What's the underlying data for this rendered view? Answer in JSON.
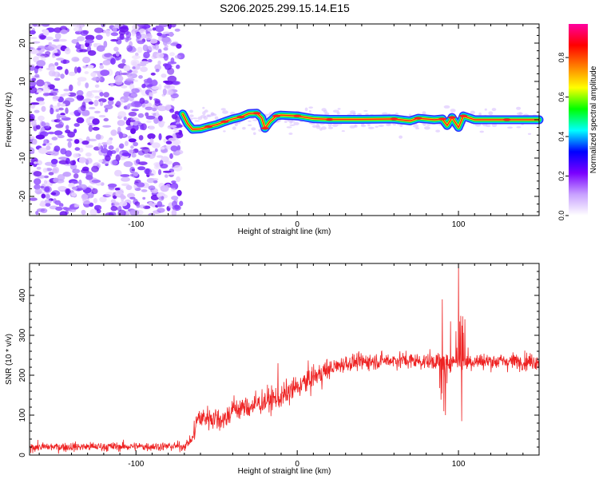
{
  "title": "S206.2025.299.15.14.E15",
  "chart_data": [
    {
      "type": "heatmap",
      "xlabel": "Height of straight line (km)",
      "ylabel": "Frequency (Hz)",
      "xlim": [
        -166,
        150
      ],
      "ylim": [
        -25,
        25
      ],
      "xticks": [
        -100,
        0,
        100
      ],
      "yticks": [
        -20,
        -10,
        0,
        10,
        20
      ],
      "grid": false,
      "noise_region_x": [
        -166,
        -72
      ],
      "track_points": [
        [
          -71,
          1.5
        ],
        [
          -68,
          -1
        ],
        [
          -65,
          -2.5
        ],
        [
          -60,
          -2.4
        ],
        [
          -55,
          -1.8
        ],
        [
          -50,
          -1.3
        ],
        [
          -45,
          -0.5
        ],
        [
          -40,
          0.2
        ],
        [
          -35,
          0.7
        ],
        [
          -30,
          1.6
        ],
        [
          -25,
          1.7
        ],
        [
          -22,
          0.5
        ],
        [
          -20,
          -2.2
        ],
        [
          -17,
          -0.5
        ],
        [
          -13,
          1.0
        ],
        [
          -10,
          1.2
        ],
        [
          0,
          1.0
        ],
        [
          10,
          0.3
        ],
        [
          20,
          0.1
        ],
        [
          40,
          0.1
        ],
        [
          60,
          0.2
        ],
        [
          70,
          -0.3
        ],
        [
          75,
          0.4
        ],
        [
          85,
          0.0
        ],
        [
          90,
          0.2
        ],
        [
          93,
          -1.5
        ],
        [
          96,
          0.6
        ],
        [
          100,
          -2.0
        ],
        [
          103,
          1.0
        ],
        [
          110,
          0.0
        ],
        [
          130,
          0.0
        ],
        [
          150,
          0.0
        ]
      ]
    },
    {
      "type": "line",
      "xlabel": "Height of straight line (km)",
      "ylabel": "SNR (10 * v/v)",
      "xlim": [
        -166,
        150
      ],
      "ylim": [
        0,
        480
      ],
      "xticks": [
        -100,
        0,
        100
      ],
      "yticks": [
        0,
        100,
        200,
        300,
        400
      ],
      "color": "#ee2222",
      "grid": false,
      "envelope": [
        [
          -166,
          20
        ],
        [
          -70,
          22
        ],
        [
          -65,
          40
        ],
        [
          -62,
          90
        ],
        [
          -55,
          95
        ],
        [
          -45,
          90
        ],
        [
          -40,
          115
        ],
        [
          -30,
          120
        ],
        [
          -20,
          135
        ],
        [
          -10,
          145
        ],
        [
          0,
          170
        ],
        [
          10,
          195
        ],
        [
          20,
          215
        ],
        [
          30,
          230
        ],
        [
          45,
          235
        ],
        [
          60,
          238
        ],
        [
          80,
          235
        ],
        [
          150,
          235
        ]
      ],
      "spikes": [
        [
          -12,
          230
        ],
        [
          90,
          390
        ],
        [
          92,
          100
        ],
        [
          95,
          335
        ],
        [
          100,
          480
        ],
        [
          102,
          85
        ],
        [
          104,
          340
        ]
      ]
    }
  ],
  "colorbar": {
    "label": "Normalized spectral amplitude",
    "ticks": [
      "0.0",
      "0.2",
      "0.4",
      "0.6",
      "0.8"
    ],
    "tick_values": [
      0,
      0.2,
      0.4,
      0.6,
      0.8
    ],
    "range": [
      0,
      0.97
    ],
    "colors": [
      "#ffffff",
      "#c8a0ff",
      "#7a00ff",
      "#0000ff",
      "#00ffff",
      "#00ff00",
      "#ffff00",
      "#ff8000",
      "#ff0000",
      "#ff00a0"
    ]
  }
}
